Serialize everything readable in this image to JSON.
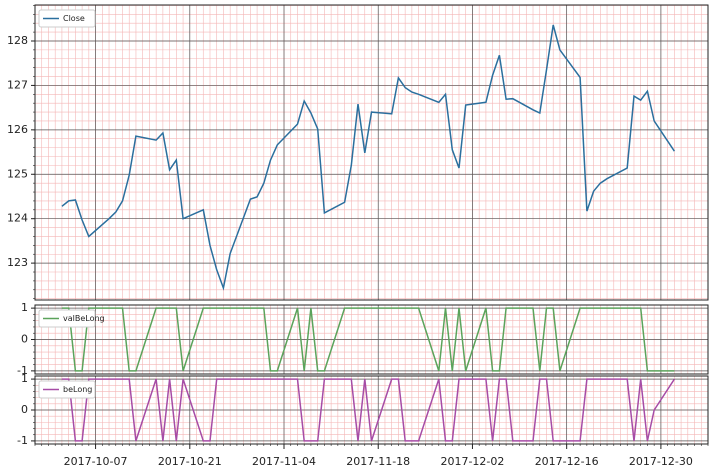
{
  "chart_data": {
    "type": "line",
    "grid": true,
    "minor_grid": true,
    "xlim": [
      "2017-09-28",
      "2018-01-06"
    ],
    "xticks": [
      "2017-10-07",
      "2017-10-21",
      "2017-11-04",
      "2017-11-18",
      "2017-12-02",
      "2017-12-16",
      "2017-12-30"
    ],
    "x": [
      "2017-10-02",
      "2017-10-03",
      "2017-10-04",
      "2017-10-05",
      "2017-10-06",
      "2017-10-09",
      "2017-10-10",
      "2017-10-11",
      "2017-10-12",
      "2017-10-13",
      "2017-10-16",
      "2017-10-17",
      "2017-10-18",
      "2017-10-19",
      "2017-10-20",
      "2017-10-23",
      "2017-10-24",
      "2017-10-25",
      "2017-10-26",
      "2017-10-27",
      "2017-10-30",
      "2017-10-31",
      "2017-11-01",
      "2017-11-02",
      "2017-11-03",
      "2017-11-06",
      "2017-11-07",
      "2017-11-08",
      "2017-11-09",
      "2017-11-10",
      "2017-11-13",
      "2017-11-14",
      "2017-11-15",
      "2017-11-16",
      "2017-11-17",
      "2017-11-20",
      "2017-11-21",
      "2017-11-22",
      "2017-11-23",
      "2017-11-24",
      "2017-11-27",
      "2017-11-28",
      "2017-11-29",
      "2017-11-30",
      "2017-12-01",
      "2017-12-04",
      "2017-12-05",
      "2017-12-06",
      "2017-12-07",
      "2017-12-08",
      "2017-12-11",
      "2017-12-12",
      "2017-12-13",
      "2017-12-14",
      "2017-12-15",
      "2017-12-18",
      "2017-12-19",
      "2017-12-20",
      "2017-12-21",
      "2017-12-22",
      "2017-12-25",
      "2017-12-26",
      "2017-12-27",
      "2017-12-28",
      "2017-12-29",
      "2018-01-01"
    ],
    "panels": [
      {
        "legend": "upper left",
        "ylim": [
          122.17,
          128.81
        ],
        "yticks": [
          123,
          124,
          125,
          126,
          127,
          128
        ],
        "series": [
          {
            "name": "Close",
            "color": "#2b6f9e",
            "values": [
              124.28,
              124.4,
              124.42,
              123.97,
              123.6,
              124.0,
              124.15,
              124.4,
              124.98,
              125.86,
              125.77,
              125.93,
              125.1,
              125.32,
              124.0,
              124.2,
              123.4,
              122.85,
              122.44,
              123.22,
              124.44,
              124.49,
              124.8,
              125.32,
              125.66,
              126.13,
              126.65,
              126.38,
              126.02,
              124.13,
              124.37,
              125.2,
              126.58,
              125.48,
              126.4,
              126.36,
              127.17,
              126.95,
              126.85,
              126.8,
              126.62,
              126.8,
              125.55,
              125.14,
              126.56,
              126.62,
              127.23,
              127.68,
              126.69,
              126.7,
              126.45,
              126.38,
              127.35,
              128.36,
              127.8,
              127.18,
              124.17,
              124.62,
              124.8,
              124.9,
              125.14,
              126.76,
              126.67,
              126.87,
              126.2,
              125.52
            ]
          }
        ]
      },
      {
        "legend": "upper left",
        "ylim": [
          -1.1,
          1.1
        ],
        "yticks": [
          -1,
          0,
          1
        ],
        "series": [
          {
            "name": "valBeLong",
            "color": "#5ba35b",
            "values": [
              1,
              1,
              -1,
              -1,
              1,
              1,
              1,
              1,
              -1,
              -1,
              1,
              1,
              1,
              1,
              -1,
              1,
              1,
              1,
              1,
              1,
              1,
              1,
              1,
              -1,
              -1,
              1,
              -1,
              1,
              -1,
              -1,
              1,
              1,
              1,
              1,
              1,
              1,
              1,
              1,
              1,
              1,
              -1,
              1,
              -1,
              1,
              -1,
              1,
              -1,
              -1,
              1,
              1,
              1,
              -1,
              1,
              1,
              -1,
              1,
              1,
              1,
              1,
              1,
              1,
              1,
              1,
              -1,
              -1,
              -1
            ]
          }
        ]
      },
      {
        "legend": "upper left",
        "ylim": [
          -1.1,
          1.1
        ],
        "yticks": [
          -1,
          0,
          1
        ],
        "series": [
          {
            "name": "beLong",
            "color": "#a64ca6",
            "values": [
              1,
              1,
              -1,
              -1,
              1,
              1,
              1,
              1,
              1,
              -1,
              1,
              -1,
              1,
              -1,
              1,
              -1,
              -1,
              1,
              1,
              1,
              1,
              1,
              1,
              1,
              1,
              1,
              -1,
              -1,
              -1,
              1,
              1,
              1,
              -1,
              1,
              -1,
              1,
              1,
              -1,
              -1,
              -1,
              1,
              -1,
              -1,
              1,
              1,
              1,
              -1,
              1,
              1,
              -1,
              -1,
              1,
              1,
              -1,
              -1,
              -1,
              1,
              1,
              1,
              1,
              1,
              -1,
              1,
              -1,
              0,
              1
            ]
          }
        ]
      }
    ]
  }
}
